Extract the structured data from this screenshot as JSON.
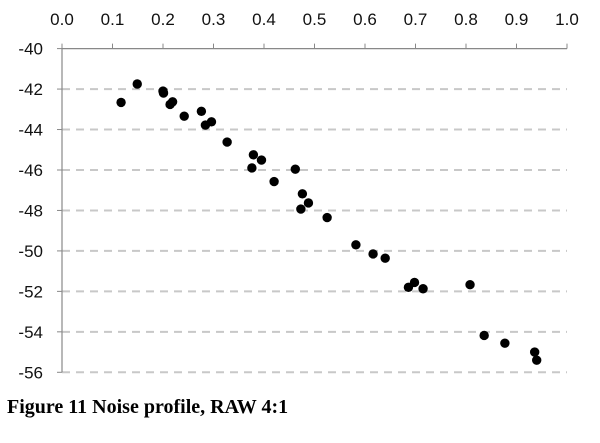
{
  "chart_data": {
    "type": "scatter",
    "title": "",
    "xlabel": "",
    "ylabel": "",
    "xlim": [
      0.0,
      1.0
    ],
    "ylim": [
      -56,
      -40
    ],
    "x_axis_position": "top",
    "x_ticks": [
      "0.0",
      "0.1",
      "0.2",
      "0.3",
      "0.4",
      "0.5",
      "0.6",
      "0.7",
      "0.8",
      "0.9",
      "1.0"
    ],
    "y_ticks": [
      "-40",
      "-42",
      "-44",
      "-46",
      "-48",
      "-50",
      "-52",
      "-54",
      "-56"
    ],
    "grid": "horizontal dashed",
    "grid_color": "#c8c8c8",
    "marker_color": "#000000",
    "points": [
      [
        0.117,
        -42.66
      ],
      [
        0.149,
        -41.75
      ],
      [
        0.2,
        -42.1
      ],
      [
        0.201,
        -42.2
      ],
      [
        0.219,
        -42.63
      ],
      [
        0.214,
        -42.76
      ],
      [
        0.242,
        -43.34
      ],
      [
        0.276,
        -43.1
      ],
      [
        0.284,
        -43.78
      ],
      [
        0.296,
        -43.62
      ],
      [
        0.327,
        -44.62
      ],
      [
        0.379,
        -45.25
      ],
      [
        0.395,
        -45.51
      ],
      [
        0.376,
        -45.9
      ],
      [
        0.462,
        -45.96
      ],
      [
        0.42,
        -46.57
      ],
      [
        0.476,
        -47.18
      ],
      [
        0.488,
        -47.63
      ],
      [
        0.473,
        -47.93
      ],
      [
        0.525,
        -48.35
      ],
      [
        0.582,
        -49.7
      ],
      [
        0.616,
        -50.15
      ],
      [
        0.64,
        -50.36
      ],
      [
        0.686,
        -51.8
      ],
      [
        0.698,
        -51.56
      ],
      [
        0.715,
        -51.87
      ],
      [
        0.808,
        -51.67
      ],
      [
        0.836,
        -54.18
      ],
      [
        0.877,
        -54.56
      ],
      [
        0.936,
        -55.0
      ],
      [
        0.94,
        -55.4
      ]
    ]
  },
  "caption": "Figure 11 Noise profile, RAW 4:1"
}
